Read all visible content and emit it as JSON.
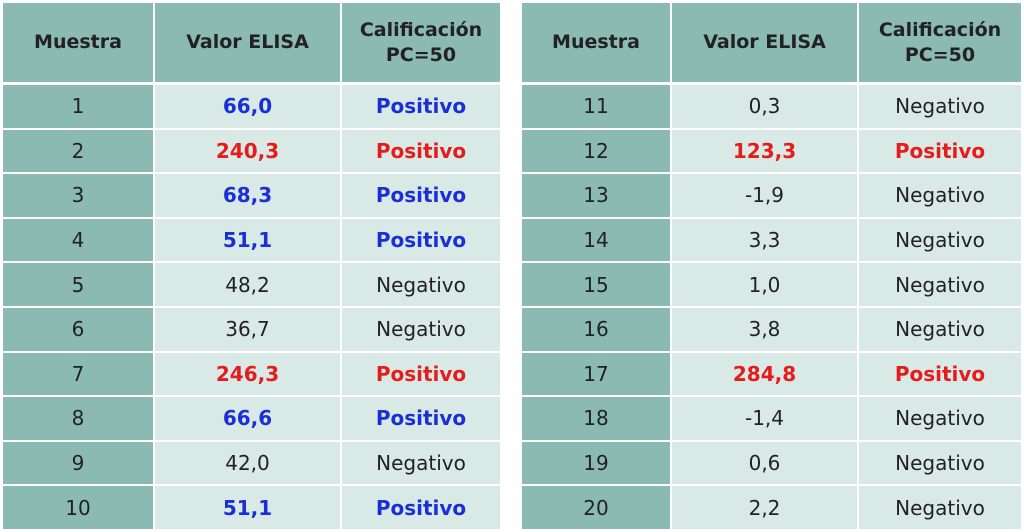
{
  "tables": [
    {
      "headers": [
        "Muestra",
        "Valor ELISA",
        "Calificación PC=50"
      ],
      "rows": [
        {
          "cells": [
            "1",
            "66,0",
            "Positivo"
          ],
          "emphasis": "blue"
        },
        {
          "cells": [
            "2",
            "240,3",
            "Positivo"
          ],
          "emphasis": "red"
        },
        {
          "cells": [
            "3",
            "68,3",
            "Positivo"
          ],
          "emphasis": "blue"
        },
        {
          "cells": [
            "4",
            "51,1",
            "Positivo"
          ],
          "emphasis": "blue"
        },
        {
          "cells": [
            "5",
            "48,2",
            "Negativo"
          ],
          "emphasis": "none"
        },
        {
          "cells": [
            "6",
            "36,7",
            "Negativo"
          ],
          "emphasis": "none"
        },
        {
          "cells": [
            "7",
            "246,3",
            "Positivo"
          ],
          "emphasis": "red"
        },
        {
          "cells": [
            "8",
            "66,6",
            "Positivo"
          ],
          "emphasis": "blue"
        },
        {
          "cells": [
            "9",
            "42,0",
            "Negativo"
          ],
          "emphasis": "none"
        },
        {
          "cells": [
            "10",
            "51,1",
            "Positivo"
          ],
          "emphasis": "blue"
        }
      ]
    },
    {
      "headers": [
        "Muestra",
        "Valor ELISA",
        "Calificación PC=50"
      ],
      "rows": [
        {
          "cells": [
            "11",
            "0,3",
            "Negativo"
          ],
          "emphasis": "none"
        },
        {
          "cells": [
            "12",
            "123,3",
            "Positivo"
          ],
          "emphasis": "red"
        },
        {
          "cells": [
            "13",
            "-1,9",
            "Negativo"
          ],
          "emphasis": "none"
        },
        {
          "cells": [
            "14",
            "3,3",
            "Negativo"
          ],
          "emphasis": "none"
        },
        {
          "cells": [
            "15",
            "1,0",
            "Negativo"
          ],
          "emphasis": "none"
        },
        {
          "cells": [
            "16",
            "3,8",
            "Negativo"
          ],
          "emphasis": "none"
        },
        {
          "cells": [
            "17",
            "284,8",
            "Positivo"
          ],
          "emphasis": "red"
        },
        {
          "cells": [
            "18",
            "-1,4",
            "Negativo"
          ],
          "emphasis": "none"
        },
        {
          "cells": [
            "19",
            "0,6",
            "Negativo"
          ],
          "emphasis": "none"
        },
        {
          "cells": [
            "20",
            "2,2",
            "Negativo"
          ],
          "emphasis": "none"
        }
      ]
    }
  ]
}
